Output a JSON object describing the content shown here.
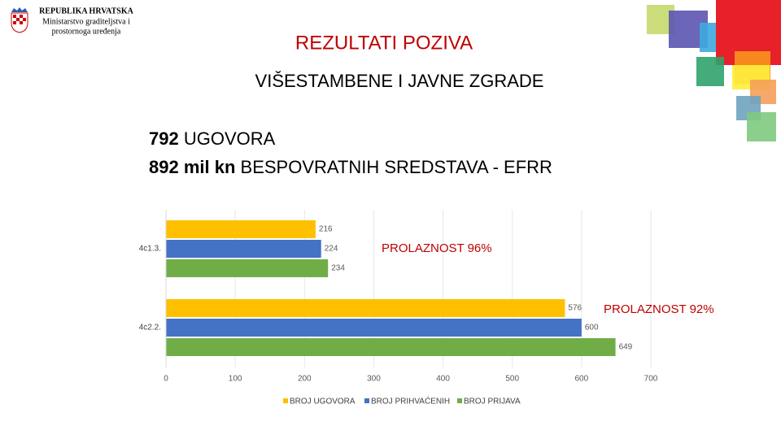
{
  "header": {
    "country": "REPUBLIKA HRVATSKA",
    "ministry_line1": "Ministarstvo graditeljstva i",
    "ministry_line2": "prostornoga uređenja"
  },
  "title": "REZULTATI POZIVA",
  "subtitle": "VIŠESTAMBENE I JAVNE ZGRADE",
  "summary": [
    {
      "bold": "792",
      "text": "UGOVORA"
    },
    {
      "bold": "892 mil kn",
      "text": "BESPOVRATNIH SREDSTAVA - EFRR"
    }
  ],
  "chart_data": {
    "type": "hbar",
    "categories": [
      "4c1.3.",
      "4c2.2."
    ],
    "series": [
      {
        "name": "BROJ UGOVORA",
        "color": "#FFC000",
        "values": [
          216,
          576
        ]
      },
      {
        "name": "BROJ PRIHVAĆENIH",
        "color": "#4472C4",
        "values": [
          224,
          600
        ]
      },
      {
        "name": "BROJ PRIJAVA",
        "color": "#70AD47",
        "values": [
          234,
          649
        ]
      }
    ],
    "xlim": [
      0,
      700
    ],
    "xticks": [
      0,
      100,
      200,
      300,
      400,
      500,
      600,
      700
    ],
    "grid": true,
    "annotations": [
      "PROLAZNOST 96%",
      "PROLAZNOST 92%"
    ]
  }
}
